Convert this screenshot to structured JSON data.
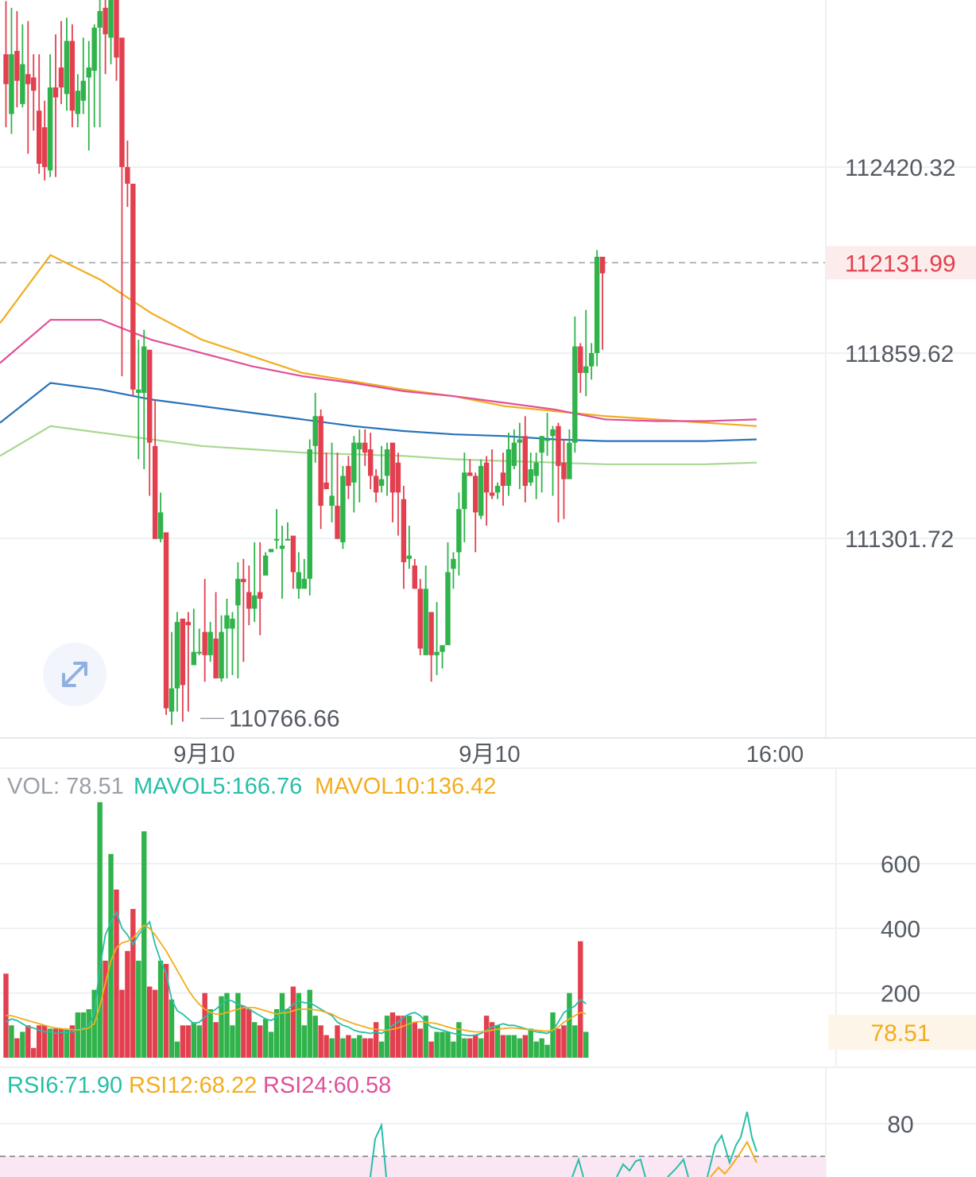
{
  "chart_data": [
    {
      "type": "candlestick",
      "title": "",
      "price_axis_ticks": [
        "112420.32",
        "111859.62",
        "111301.72"
      ],
      "price_axis_tick_values": [
        112420.32,
        111859.62,
        111301.72
      ],
      "current_price_label": "112131.99",
      "current_price": 112131.99,
      "low_marker_label": "110766.66",
      "low_marker_value": 110766.66,
      "time_labels": [
        "9月10",
        "9月10",
        "16:00"
      ],
      "colors": {
        "up": "#2fb34a",
        "down": "#e2404f",
        "ma1": "#f2ad1e",
        "ma2": "#e0509a",
        "ma3": "#2872b8",
        "ma4": "#a9d88f"
      },
      "candles": [
        [
          112760,
          112670,
          112920,
          112540
        ],
        [
          112580,
          112760,
          112900,
          112520
        ],
        [
          112770,
          112680,
          112890,
          112600
        ],
        [
          112610,
          112730,
          112850,
          112600
        ],
        [
          112700,
          112670,
          112860,
          112460
        ],
        [
          112690,
          112650,
          112760,
          112530
        ],
        [
          112590,
          112430,
          112760,
          112400
        ],
        [
          112540,
          112420,
          112620,
          112380
        ],
        [
          112410,
          112660,
          112760,
          112390
        ],
        [
          112660,
          112630,
          112820,
          112390
        ],
        [
          112720,
          112660,
          112860,
          112610
        ],
        [
          112640,
          112800,
          112870,
          112590
        ],
        [
          112800,
          112590,
          112850,
          112540
        ],
        [
          112580,
          112650,
          112700,
          112540
        ],
        [
          112620,
          112680,
          112810,
          112580
        ],
        [
          112690,
          112720,
          112800,
          112470
        ],
        [
          112710,
          112840,
          112850,
          112540
        ],
        [
          112840,
          112890,
          112970,
          112540
        ],
        [
          112900,
          112820,
          113010,
          112700
        ],
        [
          112810,
          112930,
          112980,
          112730
        ],
        [
          112930,
          112750,
          113030,
          112680
        ],
        [
          112810,
          112420,
          112800,
          111790
        ],
        [
          112420,
          112370,
          112500,
          112300
        ],
        [
          112370,
          111750,
          112330,
          111730
        ],
        [
          111740,
          111750,
          111900,
          111540
        ],
        [
          111740,
          111880,
          111930,
          111510
        ],
        [
          111870,
          111590,
          111870,
          111430
        ],
        [
          111580,
          111300,
          111720,
          111300
        ],
        [
          111300,
          111380,
          111440,
          111290
        ],
        [
          111320,
          110790,
          111240,
          110770
        ],
        [
          110780,
          110850,
          111020,
          110740
        ],
        [
          110850,
          111050,
          111080,
          110780
        ],
        [
          111060,
          110860,
          111060,
          110750
        ],
        [
          111050,
          111040,
          111080,
          110780
        ],
        [
          110920,
          110960,
          111090,
          110930
        ],
        [
          110960,
          110960,
          111030,
          110950
        ],
        [
          111020,
          110950,
          111180,
          110870
        ],
        [
          110950,
          111020,
          111050,
          110930
        ],
        [
          111000,
          110880,
          111140,
          110880
        ],
        [
          110880,
          111020,
          111070,
          110870
        ],
        [
          111030,
          111070,
          111120,
          110880
        ],
        [
          111030,
          111060,
          111080,
          110890
        ],
        [
          111100,
          111180,
          111230,
          110880
        ],
        [
          111180,
          111170,
          111240,
          110930
        ],
        [
          111140,
          111090,
          111220,
          111040
        ],
        [
          111090,
          111130,
          111290,
          111050
        ],
        [
          111140,
          111120,
          111290,
          111010
        ],
        [
          111190,
          111250,
          111260,
          111190
        ],
        [
          111260,
          111270,
          111270,
          111270
        ],
        [
          111300,
          111300,
          111390,
          111270
        ],
        [
          111270,
          111280,
          111340,
          111120
        ],
        [
          111300,
          111300,
          111350,
          111300
        ],
        [
          111310,
          111200,
          111300,
          111150
        ],
        [
          111150,
          111200,
          111260,
          111120
        ],
        [
          111150,
          111180,
          111240,
          111160
        ],
        [
          111180,
          111570,
          111600,
          111130
        ],
        [
          111580,
          111670,
          111740,
          111530
        ],
        [
          111670,
          111400,
          111690,
          111330
        ],
        [
          111470,
          111450,
          111560,
          111460
        ],
        [
          111400,
          111430,
          111590,
          111350
        ],
        [
          111400,
          111300,
          111560,
          111300
        ],
        [
          111290,
          111490,
          111520,
          111270
        ],
        [
          111520,
          111460,
          111550,
          111420
        ],
        [
          111470,
          111590,
          111610,
          111380
        ],
        [
          111570,
          111590,
          111630,
          111410
        ],
        [
          111590,
          111560,
          111630,
          111520
        ],
        [
          111570,
          111490,
          111620,
          111450
        ],
        [
          111490,
          111440,
          111510,
          111410
        ],
        [
          111460,
          111480,
          111580,
          111440
        ],
        [
          111490,
          111570,
          111590,
          111430
        ],
        [
          111590,
          111440,
          111590,
          111350
        ],
        [
          111530,
          111440,
          111560,
          111310
        ],
        [
          111420,
          111230,
          111460,
          111150
        ],
        [
          111240,
          111250,
          111340,
          111210
        ],
        [
          111220,
          111150,
          111240,
          111150
        ],
        [
          111150,
          110970,
          111180,
          110950
        ],
        [
          110950,
          111150,
          111220,
          110950
        ],
        [
          111080,
          110950,
          111080,
          110870
        ],
        [
          110950,
          110960,
          111110,
          110890
        ],
        [
          110960,
          110980,
          110980,
          110910
        ],
        [
          110980,
          111200,
          111290,
          110990
        ],
        [
          111210,
          111240,
          111260,
          111150
        ],
        [
          111260,
          111390,
          111440,
          111190
        ],
        [
          111390,
          111500,
          111560,
          111290
        ],
        [
          111500,
          111490,
          111540,
          111490
        ],
        [
          111490,
          111380,
          111500,
          111260
        ],
        [
          111370,
          111520,
          111540,
          111360
        ],
        [
          111530,
          111440,
          111550,
          111340
        ],
        [
          111440,
          111430,
          111570,
          111420
        ],
        [
          111440,
          111460,
          111470,
          111420
        ],
        [
          111500,
          111460,
          111560,
          111400
        ],
        [
          111460,
          111570,
          111620,
          111430
        ],
        [
          111520,
          111590,
          111630,
          111510
        ],
        [
          111590,
          111600,
          111650,
          111450
        ],
        [
          111610,
          111460,
          111670,
          111410
        ],
        [
          111470,
          111510,
          111560,
          111460
        ],
        [
          111490,
          111530,
          111560,
          111420
        ],
        [
          111560,
          111610,
          111610,
          111440
        ],
        [
          111600,
          111600,
          111680,
          111550
        ],
        [
          111610,
          111630,
          111640,
          111430
        ],
        [
          111640,
          111520,
          111650,
          111350
        ],
        [
          111530,
          111480,
          111600,
          111360
        ],
        [
          111480,
          111590,
          111630,
          111570
        ],
        [
          111590,
          111880,
          111970,
          111560
        ],
        [
          111880,
          111800,
          111890,
          111740
        ],
        [
          111800,
          111820,
          111990,
          111730
        ],
        [
          111820,
          111860,
          111890,
          111780
        ],
        [
          111860,
          112150,
          112170,
          111820
        ],
        [
          112150,
          112100,
          112130,
          111870
        ]
      ],
      "moving_averages": [
        {
          "name": "ma1",
          "values": [
            111950,
            112155,
            112080,
            111980,
            111900,
            111850,
            111800,
            111775,
            111750,
            111730,
            111700,
            111685,
            111670,
            111660,
            111650,
            111640
          ]
        },
        {
          "name": "ma2",
          "values": [
            111830,
            111960,
            111960,
            111900,
            111860,
            111820,
            111790,
            111770,
            111745,
            111730,
            111710,
            111690,
            111660,
            111655,
            111655,
            111660
          ]
        },
        {
          "name": "ma3",
          "values": [
            111650,
            111770,
            111750,
            111720,
            111700,
            111680,
            111660,
            111640,
            111625,
            111615,
            111610,
            111600,
            111595,
            111595,
            111595,
            111600
          ]
        },
        {
          "name": "ma4",
          "values": [
            111550,
            111640,
            111620,
            111600,
            111580,
            111570,
            111560,
            111555,
            111550,
            111540,
            111535,
            111530,
            111525,
            111525,
            111525,
            111530
          ]
        }
      ]
    },
    {
      "type": "bar",
      "title": "VOL: 78.51 MAVOL5:166.76 MAVOL10:136.42",
      "legend": [
        {
          "text": "VOL: 78.51",
          "color": "#9a9fa8"
        },
        {
          "text": "MAVOL5:166.76",
          "color": "#27bfa8"
        },
        {
          "text": "MAVOL10:136.42",
          "color": "#f2ad1e"
        }
      ],
      "axis_ticks": [
        "600",
        "400",
        "200"
      ],
      "axis_tick_values": [
        600,
        400,
        200
      ],
      "current_label": "78.51",
      "current_value": 78.51,
      "volumes": [
        260,
        100,
        60,
        80,
        100,
        30,
        100,
        100,
        90,
        90,
        90,
        90,
        100,
        140,
        140,
        150,
        210,
        790,
        300,
        630,
        520,
        210,
        330,
        460,
        300,
        700,
        220,
        210,
        300,
        290,
        180,
        50,
        100,
        100,
        110,
        100,
        200,
        150,
        110,
        190,
        200,
        100,
        200,
        160,
        150,
        110,
        100,
        120,
        80,
        150,
        200,
        150,
        220,
        200,
        100,
        210,
        130,
        100,
        70,
        60,
        100,
        60,
        70,
        60,
        70,
        60,
        60,
        110,
        50,
        130,
        140,
        130,
        130,
        130,
        110,
        90,
        130,
        50,
        80,
        80,
        80,
        50,
        110,
        60,
        60,
        70,
        60,
        130,
        110,
        100,
        70,
        70,
        70,
        60,
        70,
        90,
        50,
        60,
        40,
        140,
        90,
        100,
        200,
        100,
        360,
        80
      ],
      "mavol5": [
        110,
        120,
        115,
        105,
        95,
        92,
        85,
        80,
        80,
        75,
        78,
        78,
        80,
        85,
        92,
        100,
        140,
        280,
        380,
        420,
        450,
        400,
        380,
        350,
        380,
        400,
        420,
        350,
        300,
        260,
        180,
        145,
        135,
        120,
        105,
        110,
        125,
        140,
        150,
        165,
        180,
        175,
        165,
        160,
        150,
        140,
        130,
        120,
        115,
        125,
        145,
        150,
        165,
        175,
        170,
        170,
        160,
        150,
        140,
        130,
        110,
        100,
        95,
        85,
        80,
        78,
        75,
        80,
        75,
        85,
        100,
        110,
        125,
        135,
        140,
        130,
        110,
        95,
        90,
        85,
        80,
        75,
        72,
        70,
        68,
        70,
        75,
        85,
        95,
        100,
        105,
        100,
        100,
        95,
        90,
        85,
        80,
        78,
        75,
        85,
        110,
        140,
        150,
        160,
        180,
        167
      ],
      "mavol10": [
        130,
        130,
        125,
        120,
        115,
        110,
        105,
        100,
        95,
        92,
        90,
        88,
        87,
        86,
        88,
        92,
        105,
        160,
        230,
        300,
        340,
        355,
        360,
        370,
        390,
        410,
        400,
        380,
        355,
        330,
        300,
        270,
        240,
        210,
        185,
        165,
        150,
        140,
        135,
        135,
        140,
        145,
        150,
        155,
        155,
        155,
        150,
        145,
        140,
        135,
        138,
        140,
        145,
        150,
        150,
        150,
        148,
        145,
        140,
        135,
        125,
        118,
        112,
        105,
        100,
        95,
        90,
        88,
        85,
        85,
        88,
        92,
        98,
        105,
        110,
        112,
        110,
        108,
        105,
        100,
        95,
        90,
        88,
        85,
        82,
        80,
        80,
        82,
        85,
        88,
        90,
        92,
        92,
        90,
        88,
        86,
        85,
        83,
        82,
        85,
        95,
        110,
        120,
        130,
        140,
        136
      ]
    },
    {
      "type": "line",
      "title": "RSI6:71.90 RSI12:68.22 RSI24:60.58",
      "legend": [
        {
          "text": "RSI6:71.90",
          "color": "#27bfa8"
        },
        {
          "text": "RSI12:68.22",
          "color": "#f2ad1e"
        },
        {
          "text": "RSI24:60.58",
          "color": "#e0509a"
        }
      ],
      "axis_ticks": [
        "80"
      ],
      "axis_tick_values": [
        80
      ]
    }
  ],
  "expand_button": {
    "icon": "expand-icon"
  }
}
